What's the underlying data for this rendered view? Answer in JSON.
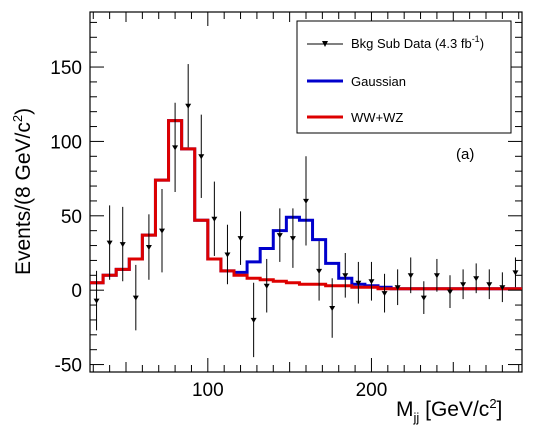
{
  "chart_data": {
    "type": "line",
    "xlabel_main": "M",
    "xlabel_sub": "jj",
    "xlabel_rest": " [GeV/c",
    "xlabel_sup": "2",
    "xlabel_end": "]",
    "ylabel_main": "Events/(8 GeV/c",
    "ylabel_sup": "2",
    "ylabel_end": ")",
    "annotation": "(a)",
    "xlim": [
      28,
      292
    ],
    "ylim": [
      -55,
      187
    ],
    "xticks": [
      100,
      200
    ],
    "yticks": [
      -50,
      0,
      50,
      100,
      150
    ],
    "legend_position": "top-right",
    "legend": {
      "data_label": "Bkg Sub Data (4.3 fb",
      "data_label_sup": "-1",
      "data_label_end": ")",
      "gaussian_label": "Gaussian",
      "wwwz_label": "WW+WZ"
    },
    "colors": {
      "data": "#000000",
      "gaussian": "#0000cc",
      "wwwz": "#dd0000"
    },
    "bin_edges": [
      28,
      36,
      44,
      52,
      60,
      68,
      76,
      84,
      92,
      100,
      108,
      116,
      124,
      132,
      140,
      148,
      156,
      164,
      172,
      180,
      188,
      196,
      204,
      212,
      220,
      228,
      236,
      244,
      252,
      260,
      268,
      276,
      284,
      292
    ],
    "series": [
      {
        "name": "WW+WZ",
        "values": [
          5,
          10,
          14,
          21,
          37,
          74,
          114,
          95,
          47,
          21,
          13,
          10,
          8,
          7,
          6,
          5,
          4,
          4,
          3,
          3,
          2,
          2,
          1,
          1,
          1,
          1,
          1,
          1,
          1,
          1,
          1,
          1,
          1
        ]
      },
      {
        "name": "Gaussian",
        "values": [
          5,
          10,
          14,
          21,
          37,
          74,
          114,
          95,
          47,
          21,
          13,
          12,
          19,
          28,
          40,
          49,
          47,
          34,
          18,
          8,
          4,
          3,
          2,
          1,
          1,
          1,
          1,
          1,
          1,
          1,
          1,
          1,
          1
        ]
      },
      {
        "name": "Bkg Sub Data (4.3 fb-1)",
        "x": [
          32,
          40,
          48,
          56,
          64,
          72,
          80,
          88,
          96,
          104,
          112,
          120,
          128,
          136,
          144,
          152,
          160,
          168,
          176,
          184,
          192,
          200,
          208,
          216,
          224,
          232,
          240,
          248,
          256,
          264,
          272,
          280,
          288
        ],
        "values": [
          -7,
          32,
          31,
          -5,
          29,
          40,
          96,
          124,
          90,
          48,
          24,
          35,
          -20,
          3,
          37,
          35,
          60,
          13,
          -12,
          10,
          5,
          6,
          -2,
          2,
          10,
          -5,
          10,
          -1,
          4,
          8,
          4,
          2,
          12
        ],
        "errors": [
          20,
          25,
          25,
          22,
          22,
          28,
          30,
          28,
          28,
          25,
          20,
          18,
          25,
          18,
          18,
          20,
          30,
          20,
          20,
          15,
          14,
          13,
          13,
          12,
          12,
          11,
          11,
          11,
          10,
          10,
          10,
          10,
          10
        ]
      }
    ]
  }
}
